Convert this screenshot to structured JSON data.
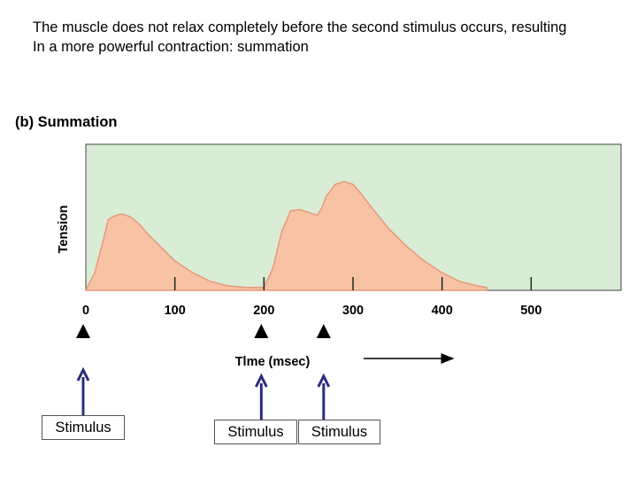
{
  "caption": {
    "line1": "The muscle does not relax completely before the second stimulus occurs, resulting",
    "line2": "In a more powerful contraction: summation"
  },
  "chart_data": {
    "type": "area",
    "title": "(b) Summation",
    "xlabel": "Tlme (msec)",
    "ylabel": "Tension",
    "xlim": [
      0,
      600
    ],
    "ylim": [
      0,
      1
    ],
    "x_ticks": [
      0,
      100,
      200,
      300,
      400,
      500
    ],
    "x_tick_labels": [
      "0",
      "100",
      "200",
      "300",
      "400",
      "500"
    ],
    "grid": false,
    "colors": {
      "plot_background": "#d9ecd6",
      "fill": "#f8c2a5",
      "stroke": "#e89a78",
      "arrow": "#2c2c80"
    },
    "series": [
      {
        "x": [
          0,
          10,
          20,
          25,
          30,
          40,
          50,
          60,
          70,
          80,
          90,
          100,
          120,
          140,
          160,
          180,
          200,
          210,
          220,
          230,
          240,
          250,
          260,
          265,
          270,
          280,
          290,
          300,
          310,
          320,
          340,
          360,
          380,
          400,
          420,
          440,
          450
        ],
        "y": [
          0,
          0.12,
          0.35,
          0.48,
          0.5,
          0.52,
          0.5,
          0.45,
          0.38,
          0.32,
          0.26,
          0.2,
          0.12,
          0.06,
          0.03,
          0.02,
          0.02,
          0.15,
          0.4,
          0.54,
          0.55,
          0.53,
          0.51,
          0.56,
          0.64,
          0.72,
          0.74,
          0.72,
          0.65,
          0.57,
          0.42,
          0.3,
          0.2,
          0.12,
          0.06,
          0.03,
          0.02
        ]
      }
    ],
    "stimuli": [
      {
        "x": 0,
        "label": "Stimulus"
      },
      {
        "x": 200,
        "label": "Stimulus"
      },
      {
        "x": 270,
        "label": "Stimulus"
      }
    ]
  }
}
